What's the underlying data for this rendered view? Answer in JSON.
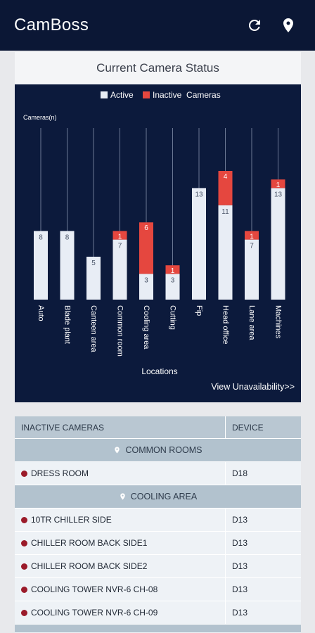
{
  "app": {
    "title": "CamBoss"
  },
  "toolbar": {
    "refresh_icon": "refresh-icon",
    "location_icon": "location-pin-icon"
  },
  "status_card": {
    "title": "Current Camera Status",
    "link_label": "View Unavailability>>"
  },
  "colors": {
    "active": "#e8edf5",
    "inactive": "#e5473f",
    "chart_bg": "#0c1a3c",
    "header_bg": "#0b1735",
    "status_dot": "#9b1b2a"
  },
  "chart_data": {
    "type": "bar",
    "stacked": true,
    "categories": [
      "Auto",
      "Blade plant",
      "Canteen area",
      "Common room",
      "Cooling area",
      "Cutting",
      "Fip",
      "Head office",
      "Lane area",
      "Machines"
    ],
    "series": [
      {
        "name": "Active",
        "values": [
          8,
          8,
          5,
          7,
          3,
          3,
          13,
          11,
          7,
          13
        ]
      },
      {
        "name": "Inactive",
        "values": [
          0,
          0,
          0,
          1,
          6,
          1,
          0,
          4,
          1,
          1
        ]
      }
    ],
    "legend": {
      "items": [
        "Active",
        "Inactive  Cameras"
      ],
      "position": "top-center"
    },
    "ylabel": "Cameras(n)",
    "xlabel": "Locations",
    "ylim": [
      0,
      20
    ],
    "grid": false
  },
  "table": {
    "headers": [
      "INACTIVE CAMERAS",
      "DEVICE"
    ],
    "groups": [
      {
        "label": "COMMON ROOMS",
        "rows": [
          {
            "name": "DRESS ROOM",
            "device": "D18"
          }
        ]
      },
      {
        "label": "COOLING AREA",
        "rows": [
          {
            "name": "10TR CHILLER SIDE",
            "device": "D13"
          },
          {
            "name": "CHILLER ROOM BACK SIDE1",
            "device": "D13"
          },
          {
            "name": "CHILLER ROOM BACK SIDE2",
            "device": "D13"
          },
          {
            "name": "COOLING TOWER NVR-6 CH-08",
            "device": "D13"
          },
          {
            "name": "COOLING TOWER NVR-6 CH-09",
            "device": "D13"
          }
        ]
      }
    ]
  }
}
